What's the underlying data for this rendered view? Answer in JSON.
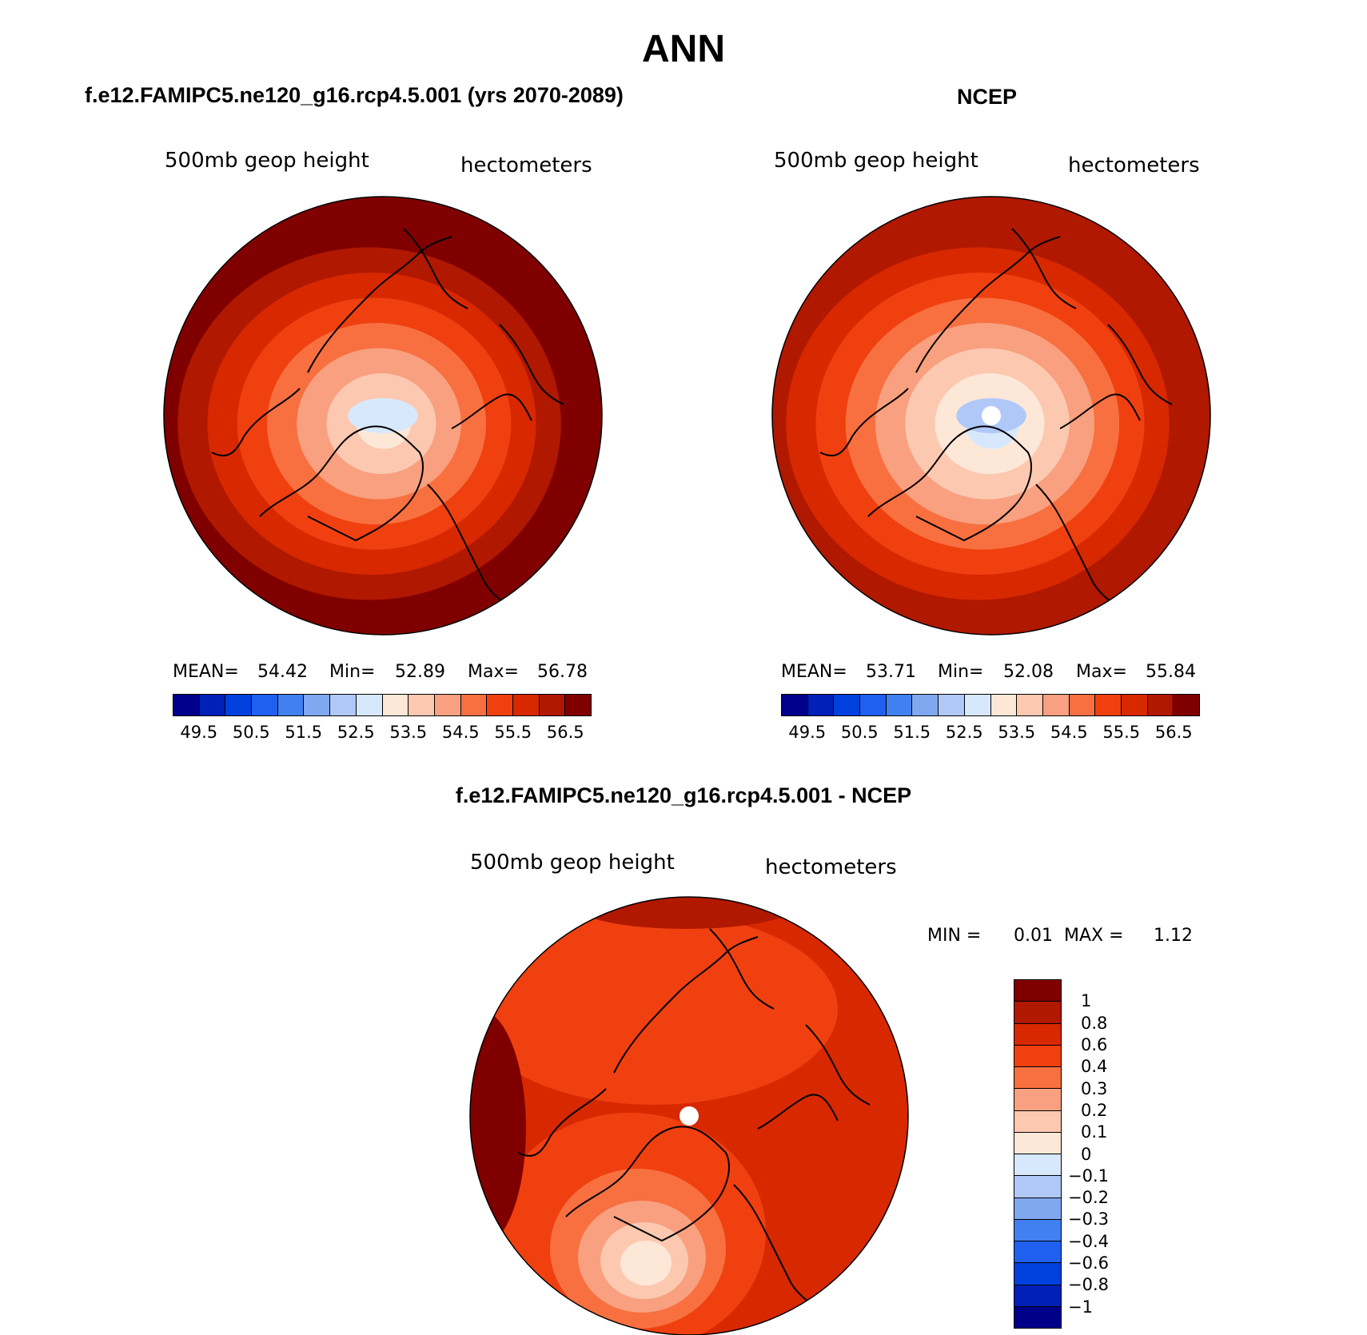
{
  "title": "ANN",
  "chart_data": [
    {
      "type": "heatmap",
      "title": "f.e12.FAMIPC5.ne120_g16.rcp4.5.001 (yrs 2070-2089)",
      "left_label": "500mb geop height",
      "right_label": "hectometers",
      "stats": {
        "mean_label": "MEAN=",
        "mean": "54.42",
        "min_label": "Min=",
        "min": "52.89",
        "max_label": "Max=",
        "max": "56.78"
      },
      "levels": [
        "49.5",
        "50.5",
        "51.5",
        "52.5",
        "53.5",
        "54.5",
        "55.5",
        "56.5"
      ],
      "rings": [
        56.5,
        56.0,
        55.5,
        55.0,
        54.5,
        54.0,
        53.5,
        53.0
      ]
    },
    {
      "type": "heatmap",
      "title": "NCEP",
      "left_label": "500mb geop height",
      "right_label": "hectometers",
      "stats": {
        "mean_label": "MEAN=",
        "mean": "53.71",
        "min_label": "Min=",
        "min": "52.08",
        "max_label": "Max=",
        "max": "55.84"
      },
      "levels": [
        "49.5",
        "50.5",
        "51.5",
        "52.5",
        "53.5",
        "54.5",
        "55.5",
        "56.5"
      ],
      "rings": [
        56.0,
        55.5,
        55.0,
        54.5,
        54.0,
        53.5,
        53.0,
        52.5
      ]
    },
    {
      "type": "heatmap",
      "title": "f.e12.FAMIPC5.ne120_g16.rcp4.5.001 - NCEP",
      "left_label": "500mb geop height",
      "right_label": "hectometers",
      "stats": {
        "min_label": "MIN =",
        "min": "0.01",
        "max_label": "MAX =",
        "max": "1.12"
      },
      "levels": [
        "1",
        "0.8",
        "0.6",
        "0.4",
        "0.3",
        "0.2",
        "0.1",
        "0",
        "−0.1",
        "−0.2",
        "−0.3",
        "−0.4",
        "−0.6",
        "−0.8",
        "−1"
      ]
    }
  ],
  "colors": {
    "abs_scale": [
      "#00008b",
      "#0020b8",
      "#0040dc",
      "#2060f0",
      "#4080f0",
      "#80a8f0",
      "#b0c8f8",
      "#d8e8fc",
      "#fde8d8",
      "#fcc8b0",
      "#f8a080",
      "#f87040",
      "#f04010",
      "#d82800",
      "#b01800",
      "#800000"
    ],
    "diff_scale": [
      "#00008b",
      "#0020b8",
      "#0040dc",
      "#2060f0",
      "#4080f0",
      "#80a8f0",
      "#b0c8f8",
      "#d8e8fc",
      "#fde8d8",
      "#fcc8b0",
      "#f8a080",
      "#f87040",
      "#f04010",
      "#d82800",
      "#b01800",
      "#800000"
    ]
  }
}
